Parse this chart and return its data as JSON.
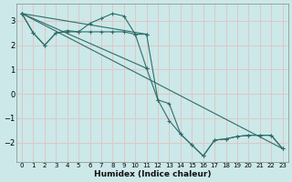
{
  "xlabel": "Humidex (Indice chaleur)",
  "bg_color": "#cce8e8",
  "grid_color": "#ddc8c8",
  "line_color": "#2e6e6a",
  "xlim": [
    -0.5,
    23.5
  ],
  "ylim": [
    -2.8,
    3.7
  ],
  "xticks": [
    0,
    1,
    2,
    3,
    4,
    5,
    6,
    7,
    8,
    9,
    10,
    11,
    12,
    13,
    14,
    15,
    16,
    17,
    18,
    19,
    20,
    21,
    22,
    23
  ],
  "yticks": [
    -2,
    -1,
    0,
    1,
    2,
    3
  ],
  "line1_x": [
    0,
    1,
    2,
    3,
    4,
    5,
    6,
    7,
    8,
    9,
    10,
    11
  ],
  "line1_y": [
    3.3,
    2.5,
    2.0,
    2.5,
    2.6,
    2.55,
    2.9,
    3.1,
    3.3,
    3.2,
    2.45,
    1.05
  ],
  "line2_x": [
    0,
    1,
    2,
    3,
    4,
    5,
    6,
    7,
    8,
    9,
    10,
    11
  ],
  "line2_y": [
    3.3,
    2.5,
    2.0,
    2.5,
    2.55,
    2.55,
    2.55,
    2.55,
    2.55,
    2.55,
    2.45,
    2.45
  ],
  "line3_x": [
    0,
    11,
    12,
    13,
    14,
    15,
    16,
    17,
    18,
    19,
    20,
    21,
    22,
    23
  ],
  "line3_y": [
    3.3,
    1.05,
    -0.25,
    -1.1,
    -1.65,
    -2.1,
    -2.55,
    -1.9,
    -1.85,
    -1.75,
    -1.7,
    -1.7,
    -1.7,
    -2.25
  ],
  "line4_x": [
    0,
    11,
    12,
    13,
    14,
    15,
    16,
    17,
    18,
    19,
    20,
    21,
    22,
    23
  ],
  "line4_y": [
    3.3,
    2.45,
    -0.25,
    -0.4,
    -1.65,
    -2.1,
    -2.55,
    -1.9,
    -1.85,
    -1.75,
    -1.7,
    -1.7,
    -1.7,
    -2.25
  ],
  "line5_x": [
    0,
    23
  ],
  "line5_y": [
    3.3,
    -2.25
  ]
}
